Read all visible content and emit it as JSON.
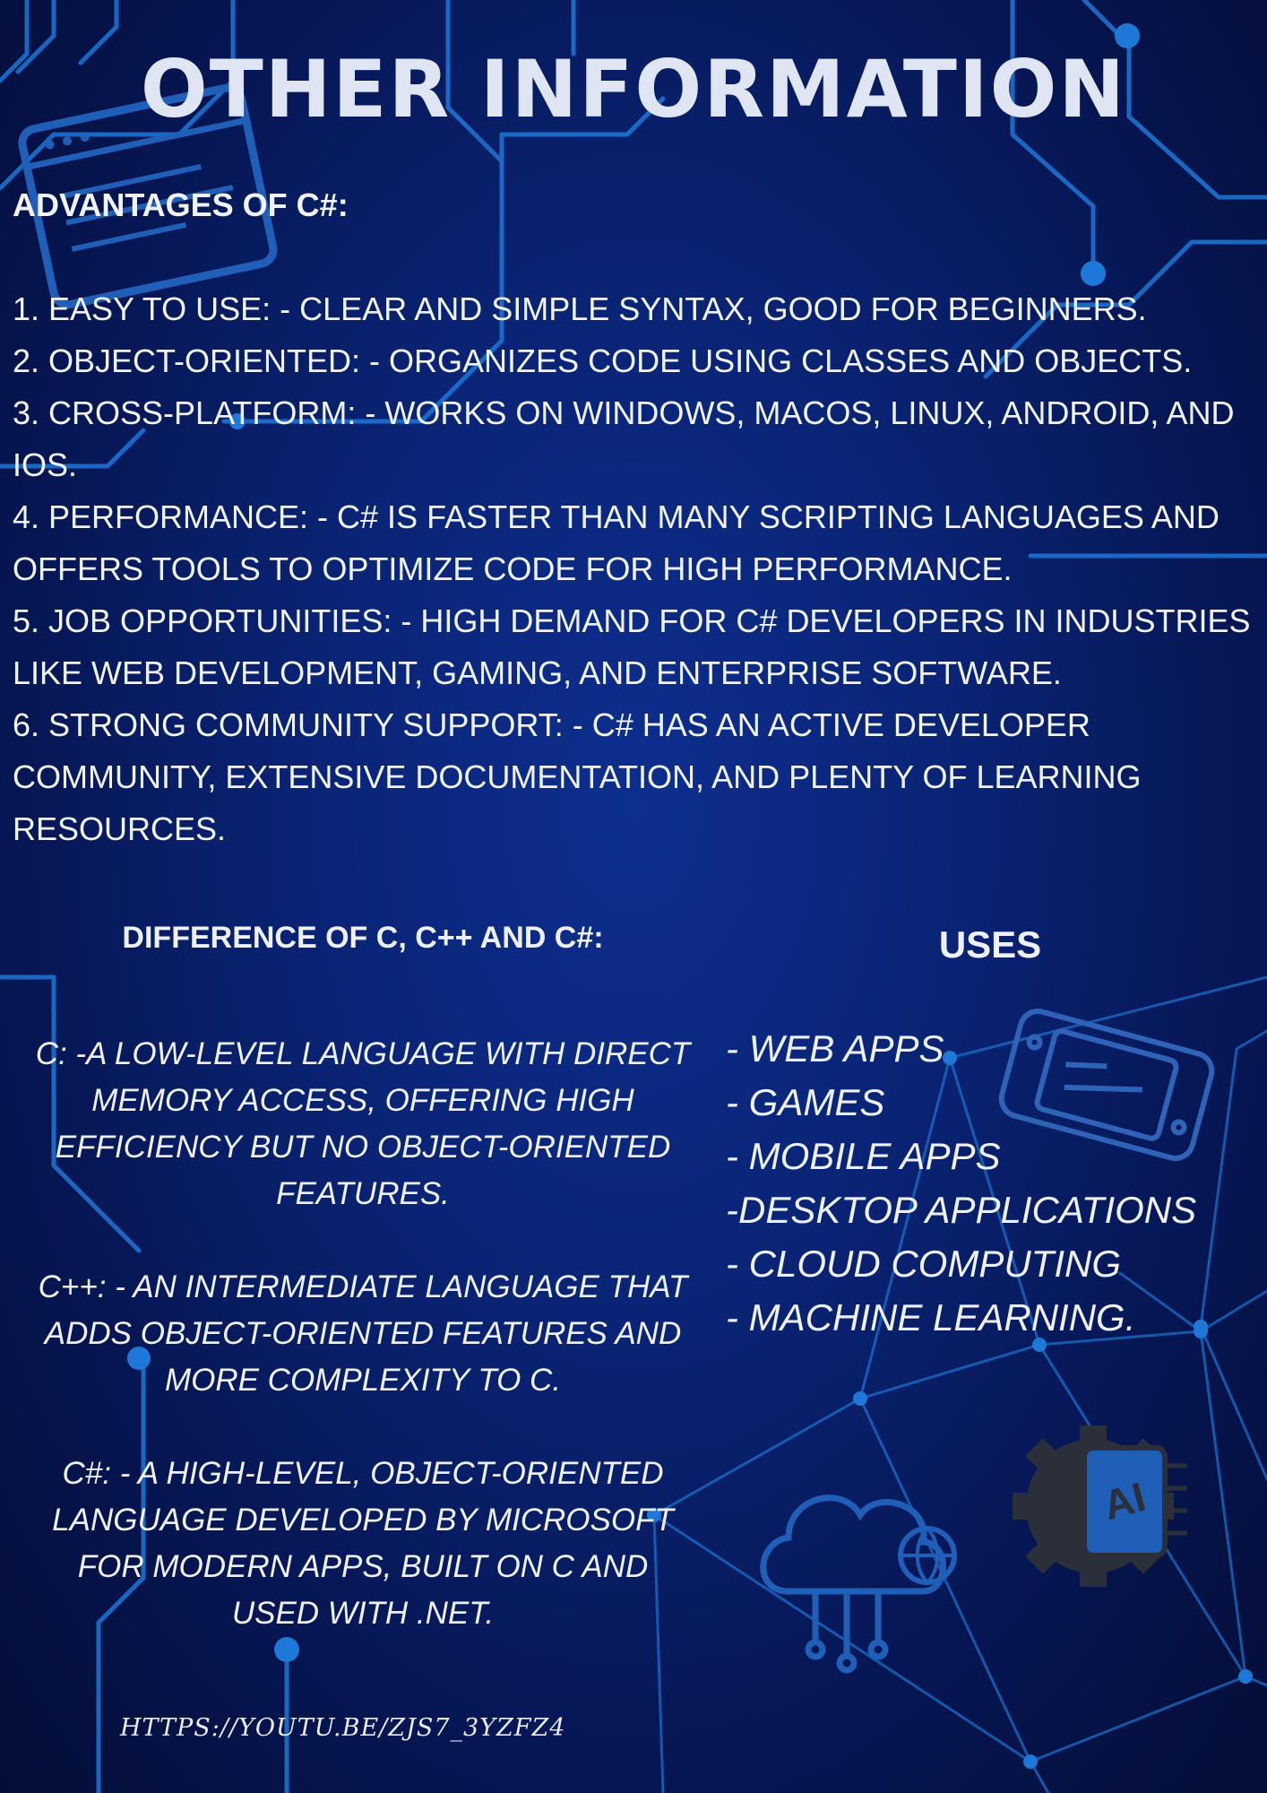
{
  "title": "OTHER INFORMATION",
  "advantages": {
    "heading": "ADVANTAGES OF C#:",
    "items": [
      "1. EASY TO USE: - CLEAR AND SIMPLE SYNTAX, GOOD FOR BEGINNERS.",
      "2. OBJECT-ORIENTED: - ORGANIZES CODE USING CLASSES AND OBJECTS.",
      "3. CROSS-PLATFORM: - WORKS ON WINDOWS, MACOS, LINUX, ANDROID, AND IOS.",
      "4. PERFORMANCE: - C# IS FASTER THAN MANY SCRIPTING LANGUAGES AND OFFERS TOOLS TO OPTIMIZE CODE FOR HIGH PERFORMANCE.",
      "5. JOB OPPORTUNITIES: - HIGH DEMAND FOR C# DEVELOPERS IN INDUSTRIES LIKE WEB DEVELOPMENT, GAMING, AND ENTERPRISE SOFTWARE.",
      "6. STRONG COMMUNITY SUPPORT: - C# HAS AN ACTIVE DEVELOPER COMMUNITY, EXTENSIVE DOCUMENTATION, AND PLENTY OF LEARNING RESOURCES."
    ]
  },
  "difference": {
    "heading": "DIFFERENCE OF C, C++ AND C#:",
    "paragraphs": [
      "C: -A LOW-LEVEL LANGUAGE WITH DIRECT MEMORY ACCESS, OFFERING HIGH EFFICIENCY BUT NO OBJECT-ORIENTED FEATURES.",
      "C++:  - AN INTERMEDIATE LANGUAGE THAT ADDS OBJECT-ORIENTED FEATURES AND MORE COMPLEXITY TO C.",
      "C#:  - A HIGH-LEVEL, OBJECT-ORIENTED LANGUAGE DEVELOPED BY MICROSOFT FOR MODERN APPS, BUILT ON C AND USED WITH .NET."
    ]
  },
  "uses": {
    "heading": "USES",
    "items": [
      "- WEB APPS",
      "- GAMES",
      "- MOBILE APPS",
      "-DESKTOP APPLICATIONS",
      "- CLOUD COMPUTING",
      "- MACHINE LEARNING."
    ]
  },
  "footer": {
    "url": "HTTPS://YOUTU.BE/ZJS7_3YZFZ4"
  },
  "icons": {
    "browser": "browser-window-icon",
    "console": "game-console-icon",
    "cloud": "cloud-network-icon",
    "ai": "ai-chip-gear-icon",
    "ai_label": "AI"
  },
  "colors": {
    "background": "#0a2476",
    "circuit": "#1e78d8",
    "text": "#f1f3fb",
    "title": "#dfe5f2",
    "icon_blue": "#1f5fb8",
    "icon_gray": "#2b2f3a"
  }
}
